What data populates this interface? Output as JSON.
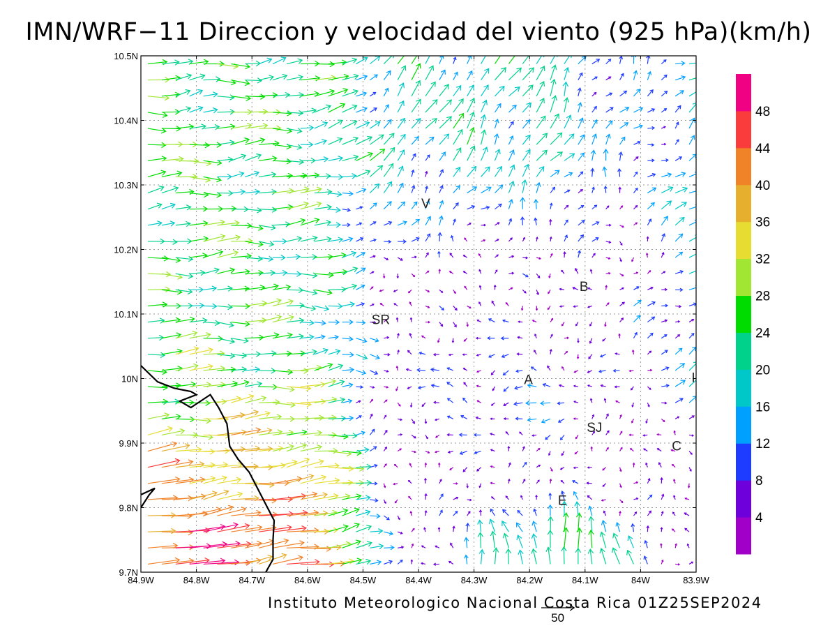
{
  "title": "IMN/WRF−11 Direccion y velocidad del viento (925 hPa)(km/h)",
  "credit": "Instituto Meteorologico Nacional Costa Rica 01Z25SEP2024",
  "map": {
    "lon_range": [
      -84.9,
      -83.9
    ],
    "lat_range": [
      9.7,
      10.5
    ],
    "lon_tick_labels": [
      "84.9W",
      "84.8W",
      "84.7W",
      "84.6W",
      "84.5W",
      "84.4W",
      "84.3W",
      "84.2W",
      "84.1W",
      "84W",
      "83.9W"
    ],
    "lat_tick_labels": [
      "9.7N",
      "9.8N",
      "9.9N",
      "10N",
      "10.1N",
      "10.2N",
      "10.3N",
      "10.4N",
      "10.5N"
    ],
    "grid": true,
    "places": [
      {
        "name": "V",
        "lon": -84.387,
        "lat": 10.272
      },
      {
        "name": "SR",
        "lon": -84.468,
        "lat": 10.092
      },
      {
        "name": "B",
        "lon": -84.102,
        "lat": 10.143
      },
      {
        "name": "A",
        "lon": -84.202,
        "lat": 9.999
      },
      {
        "name": "SJ",
        "lon": -84.083,
        "lat": 9.925
      },
      {
        "name": "C",
        "lon": -83.935,
        "lat": 9.896
      },
      {
        "name": "E",
        "lon": -84.141,
        "lat": 9.812
      },
      {
        "name": "I",
        "lon": -83.905,
        "lat": 10.002
      }
    ],
    "coastline": [
      [
        [
          -84.9,
          10.02
        ],
        [
          -84.87,
          9.995
        ],
        [
          -84.84,
          9.985
        ],
        [
          -84.81,
          9.98
        ],
        [
          -84.8,
          9.975
        ],
        [
          -84.83,
          9.965
        ],
        [
          -84.81,
          9.955
        ],
        [
          -84.775,
          9.975
        ],
        [
          -84.76,
          9.955
        ],
        [
          -84.745,
          9.93
        ],
        [
          -84.74,
          9.895
        ],
        [
          -84.725,
          9.875
        ],
        [
          -84.705,
          9.855
        ],
        [
          -84.69,
          9.83
        ],
        [
          -84.675,
          9.805
        ],
        [
          -84.66,
          9.78
        ],
        [
          -84.662,
          9.75
        ],
        [
          -84.662,
          9.72
        ],
        [
          -84.675,
          9.7
        ]
      ],
      [
        [
          -84.9,
          9.82
        ],
        [
          -84.875,
          9.83
        ],
        [
          -84.885,
          9.82
        ],
        [
          -84.9,
          9.8
        ]
      ]
    ],
    "reference_vector": {
      "label": "50",
      "speed_kmh": 50
    }
  },
  "colorbar": {
    "labels": [
      "4",
      "8",
      "12",
      "16",
      "20",
      "24",
      "28",
      "32",
      "36",
      "40",
      "44",
      "48"
    ],
    "colors": [
      "#a000c8",
      "#6e00dc",
      "#1e3cff",
      "#00a0ff",
      "#00c8c8",
      "#00d28c",
      "#00dc00",
      "#a0e632",
      "#e6dc32",
      "#e6af2d",
      "#f08228",
      "#fa3c3c",
      "#f00082"
    ]
  }
}
